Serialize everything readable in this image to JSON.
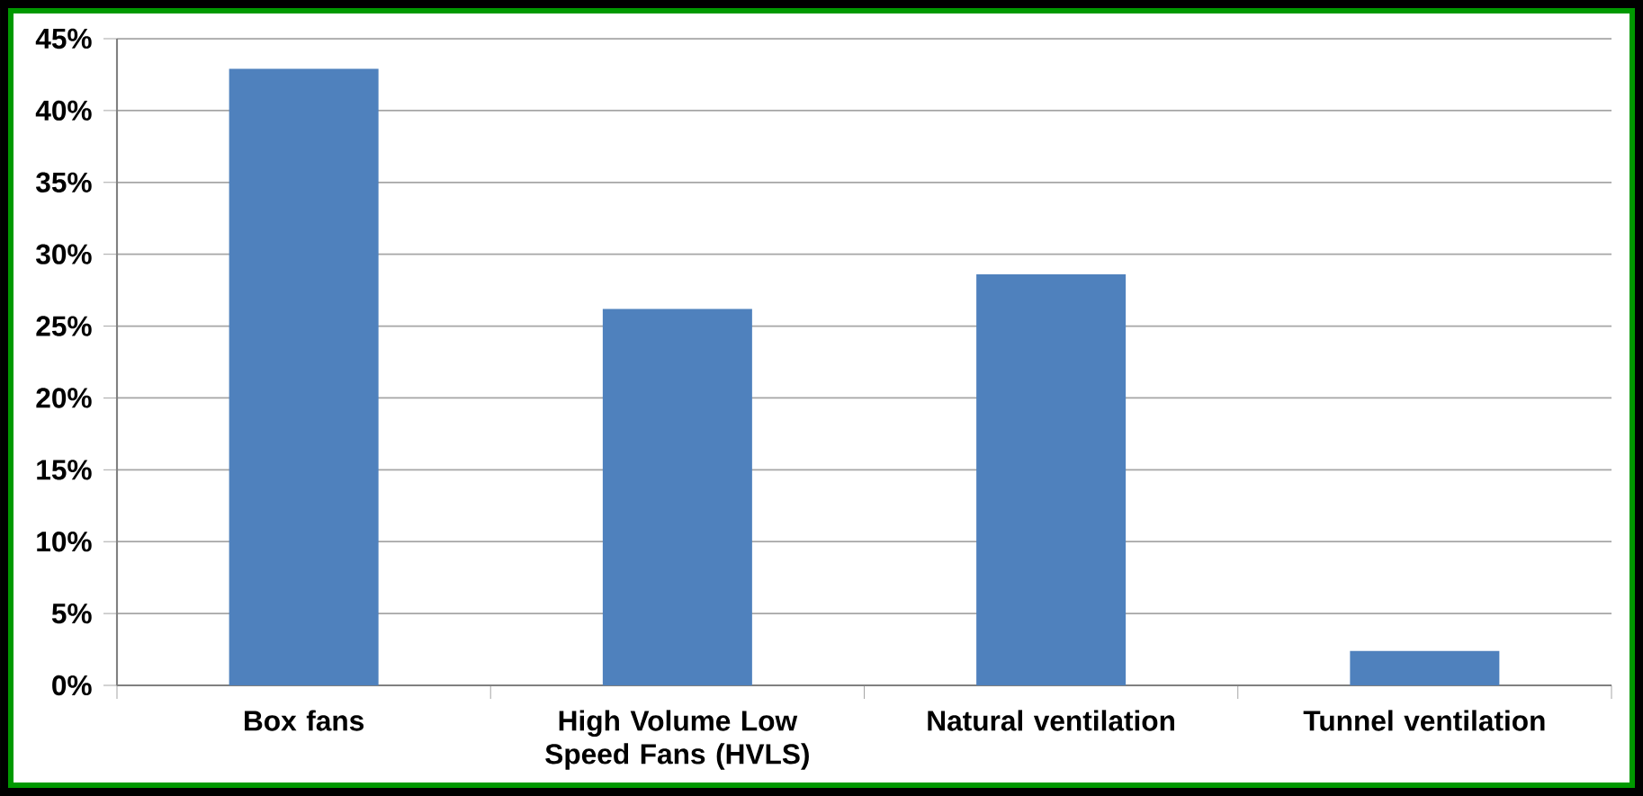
{
  "chart_data": {
    "type": "bar",
    "categories": [
      "Box fans",
      "High Volume Low Speed Fans (HVLS)",
      "Natural ventilation",
      "Tunnel ventilation"
    ],
    "values": [
      42.9,
      26.2,
      28.6,
      2.4
    ],
    "color": "#4f81bd",
    "ylim": [
      0,
      45
    ],
    "yticks": [
      {
        "value": 0,
        "label": "0%"
      },
      {
        "value": 5,
        "label": "5%"
      },
      {
        "value": 10,
        "label": "10%"
      },
      {
        "value": 15,
        "label": "15%"
      },
      {
        "value": 20,
        "label": "20%"
      },
      {
        "value": 25,
        "label": "25%"
      },
      {
        "value": 30,
        "label": "30%"
      },
      {
        "value": 35,
        "label": "35%"
      },
      {
        "value": 40,
        "label": "40%"
      },
      {
        "value": 45,
        "label": "45%"
      }
    ],
    "grid": "y"
  }
}
